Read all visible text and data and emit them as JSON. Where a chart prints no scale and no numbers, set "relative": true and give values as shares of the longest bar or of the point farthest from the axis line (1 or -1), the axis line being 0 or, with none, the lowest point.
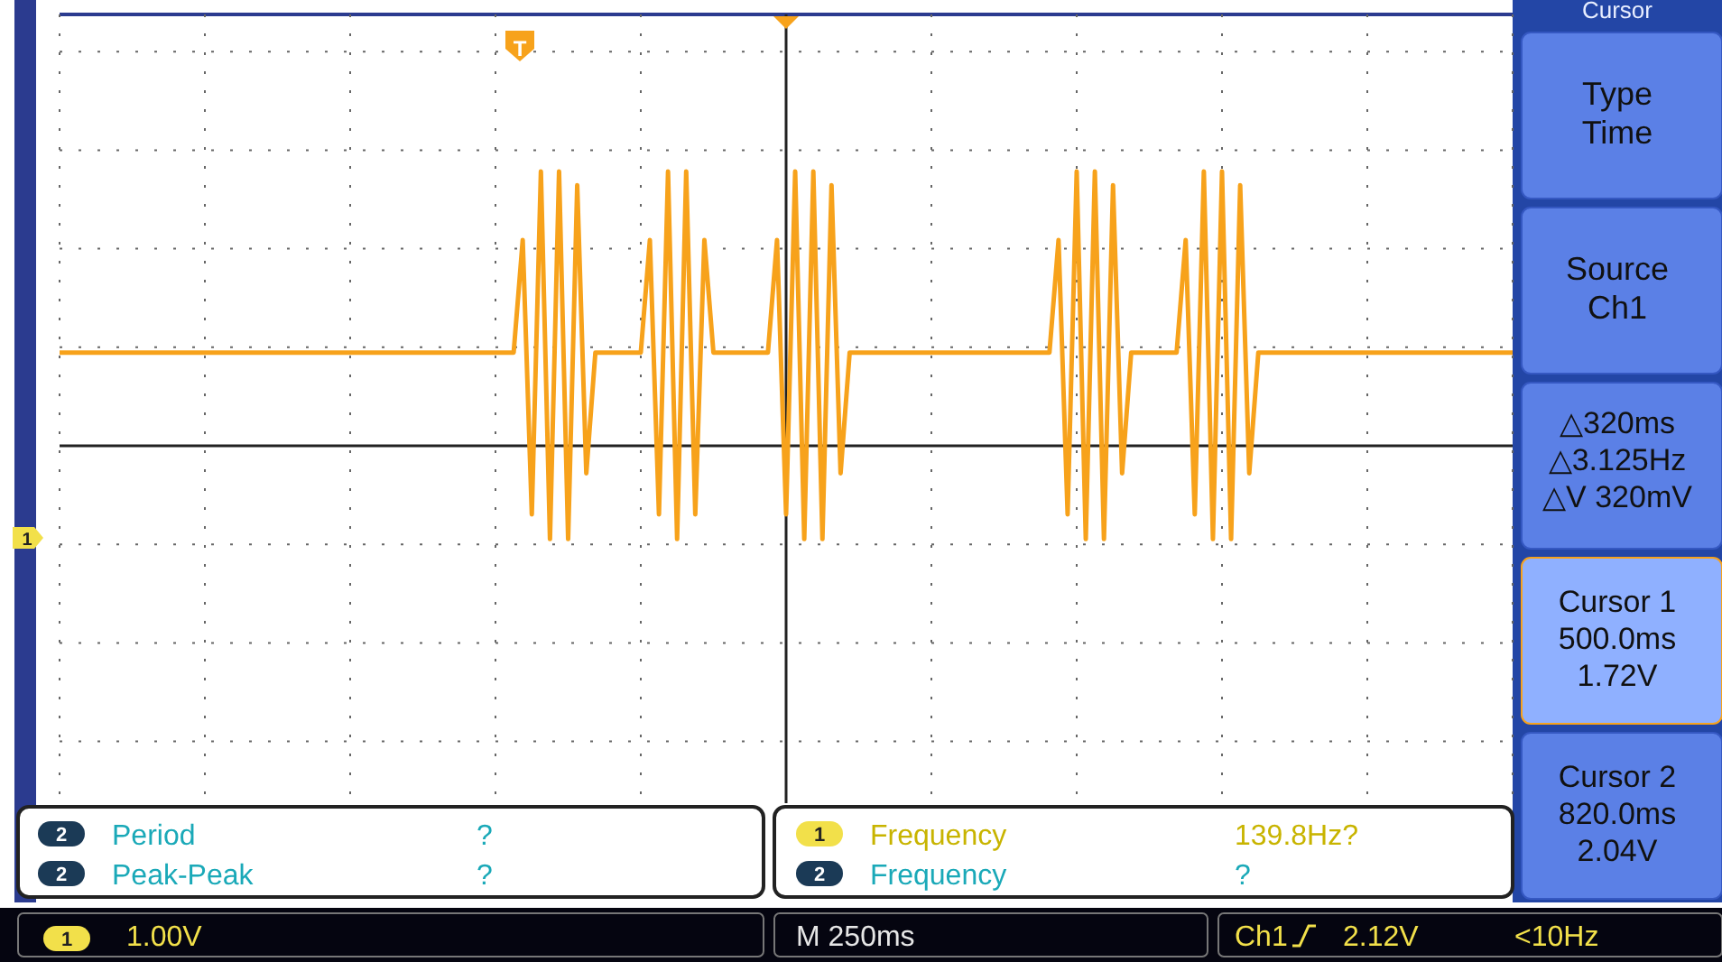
{
  "chart_data": {
    "type": "line",
    "relative": true,
    "categories": [
      null,
      null,
      null,
      null,
      null,
      null,
      null,
      null,
      null,
      null,
      null,
      null,
      null,
      null,
      null,
      null,
      null,
      null,
      null,
      null,
      null,
      null,
      null,
      null,
      null,
      null,
      null,
      null,
      null,
      null,
      null,
      null,
      null,
      null,
      null,
      null,
      null,
      null,
      null,
      null,
      null,
      null,
      null,
      null,
      null,
      null,
      null,
      null,
      null,
      null,
      null,
      null,
      null,
      null,
      null,
      null,
      null,
      null,
      null,
      null,
      null,
      null,
      null,
      null,
      null,
      null,
      null,
      null,
      null,
      null,
      null,
      null,
      null,
      null,
      null,
      null,
      null,
      null,
      null,
      null,
      null,
      null,
      null,
      null,
      null,
      null,
      null,
      null,
      null,
      null,
      null,
      null,
      null,
      null,
      null,
      null,
      null,
      null,
      null,
      null,
      null,
      null,
      null,
      null,
      null,
      null,
      null,
      null,
      null,
      null,
      null,
      null,
      null,
      null,
      null,
      null,
      null,
      null,
      null,
      null,
      null,
      null,
      null,
      null,
      null,
      null,
      null,
      null,
      null,
      null,
      null,
      null,
      null,
      null,
      null,
      null,
      null,
      null,
      null,
      null,
      null,
      null,
      null,
      null,
      null,
      null,
      null,
      null,
      null,
      null,
      null,
      null,
      null,
      null,
      null,
      null,
      null,
      null,
      null,
      null,
      null
    ],
    "grid": true,
    "marker": "none",
    "line_style": "solid",
    "series": [
      {
        "color": "#f7a21b",
        "values": [
          0.34,
          0.34,
          0.34,
          0.34,
          0.34,
          0.34,
          0.34,
          0.34,
          0.34,
          0.34,
          0.34,
          0.34,
          0.34,
          0.34,
          0.34,
          0.34,
          0.34,
          0.34,
          0.34,
          0.34,
          0.34,
          0.34,
          0.34,
          0.34,
          0.34,
          0.34,
          0.34,
          0.34,
          0.34,
          0.34,
          0.34,
          0.34,
          0.34,
          0.34,
          0.34,
          0.34,
          0.34,
          0.34,
          0.34,
          0.34,
          0.34,
          0.34,
          0.34,
          0.34,
          0.34,
          0.34,
          0.34,
          0.34,
          0.34,
          0.34,
          0.34,
          0.75,
          -0.25,
          1,
          -0.34,
          1,
          -0.34,
          0.95,
          -0.1,
          0.34,
          0.34,
          0.34,
          0.34,
          0.34,
          0.34,
          0.75,
          -0.25,
          1,
          -0.34,
          1,
          -0.25,
          0.75,
          0.34,
          0.34,
          0.34,
          0.34,
          0.34,
          0.34,
          0.34,
          0.75,
          -0.25,
          1,
          -0.34,
          1,
          -0.34,
          0.95,
          -0.1,
          0.34,
          0.34,
          0.34,
          0.34,
          0.34,
          0.34,
          0.34,
          0.34,
          0.34,
          0.34,
          0.34,
          0.34,
          0.34,
          0.34,
          0.34,
          0.34,
          0.34,
          0.34,
          0.34,
          0.34,
          0.34,
          0.34,
          0.34,
          0.75,
          -0.25,
          1,
          -0.34,
          1,
          -0.34,
          0.95,
          -0.1,
          0.34,
          0.34,
          0.34,
          0.34,
          0.34,
          0.34,
          0.75,
          -0.25,
          1,
          -0.34,
          1,
          -0.34,
          0.95,
          -0.1,
          0.34,
          0.34,
          0.34,
          0.34,
          0.34,
          0.34,
          0.34,
          0.34,
          0.34,
          0.34,
          0.34,
          0.34,
          0.34,
          0.34,
          0.34,
          0.34,
          0.34,
          0.34,
          0.34,
          0.34,
          0.34,
          0.34,
          0.34,
          0.34,
          0.34,
          0.34,
          0.34,
          0.34,
          0.34
        ]
      }
    ],
    "annotations": [
      "Cursor",
      "Type\nTime",
      "Source\nCh1",
      "△320ms\n△3.125Hz\n△V 320mV",
      "Cursor 1\n500.0ms\n1.72V",
      "Cursor 2\n820.0ms\n2.04V",
      "Period",
      "?",
      "Peak-Peak",
      "?",
      "Frequency",
      "139.8Hz?",
      "Frequency",
      "?",
      "1.00V",
      "M 250ms",
      "Ch1",
      "2.12V",
      "<10Hz",
      "T",
      "1",
      "2",
      "2",
      "1",
      "2",
      "1"
    ]
  }
}
